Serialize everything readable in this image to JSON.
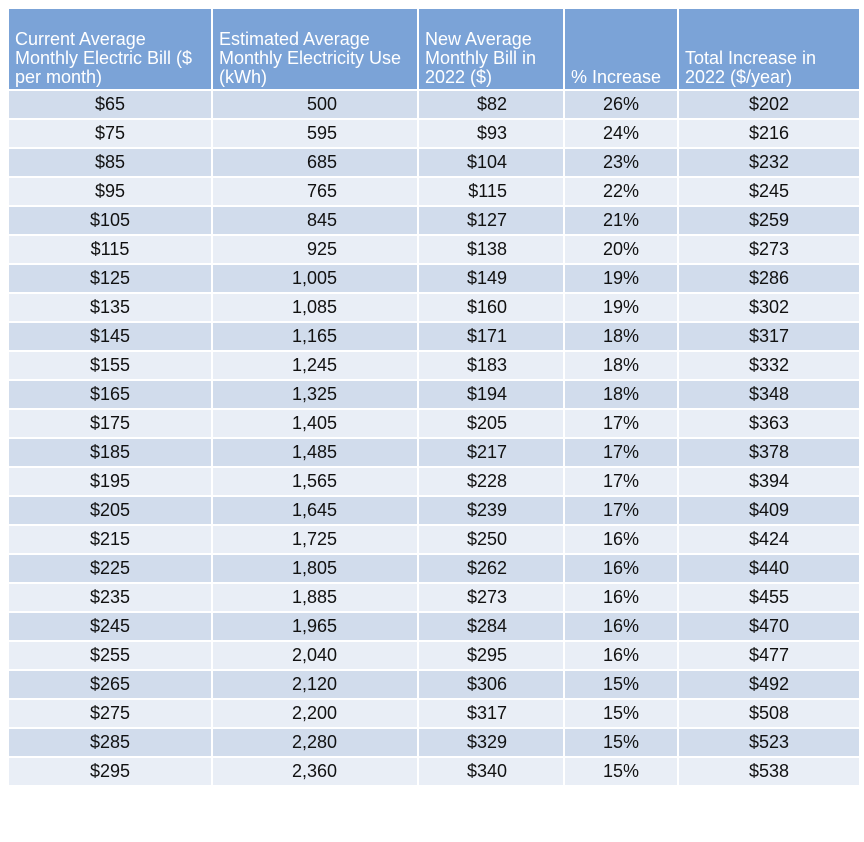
{
  "header": {
    "columns": [
      "Current Average Monthly Electric Bill ($ per month)",
      "Estimated Average Monthly Electricity Use (kWh)",
      "New Average Monthly Bill in 2022 ($)",
      "% Increase",
      "Total Increase in 2022 ($/year)"
    ]
  },
  "table": {
    "rows": [
      [
        "$65",
        "500",
        "$82",
        "26%",
        "$202"
      ],
      [
        "$75",
        "595",
        "$93",
        "24%",
        "$216"
      ],
      [
        "$85",
        "685",
        "$104",
        "23%",
        "$232"
      ],
      [
        "$95",
        "765",
        "$115",
        "22%",
        "$245"
      ],
      [
        "$105",
        "845",
        "$127",
        "21%",
        "$259"
      ],
      [
        "$115",
        "925",
        "$138",
        "20%",
        "$273"
      ],
      [
        "$125",
        "1,005",
        "$149",
        "19%",
        "$286"
      ],
      [
        "$135",
        "1,085",
        "$160",
        "19%",
        "$302"
      ],
      [
        "$145",
        "1,165",
        "$171",
        "18%",
        "$317"
      ],
      [
        "$155",
        "1,245",
        "$183",
        "18%",
        "$332"
      ],
      [
        "$165",
        "1,325",
        "$194",
        "18%",
        "$348"
      ],
      [
        "$175",
        "1,405",
        "$205",
        "17%",
        "$363"
      ],
      [
        "$185",
        "1,485",
        "$217",
        "17%",
        "$378"
      ],
      [
        "$195",
        "1,565",
        "$228",
        "17%",
        "$394"
      ],
      [
        "$205",
        "1,645",
        "$239",
        "17%",
        "$409"
      ],
      [
        "$215",
        "1,725",
        "$250",
        "16%",
        "$424"
      ],
      [
        "$225",
        "1,805",
        "$262",
        "16%",
        "$440"
      ],
      [
        "$235",
        "1,885",
        "$273",
        "16%",
        "$455"
      ],
      [
        "$245",
        "1,965",
        "$284",
        "16%",
        "$470"
      ],
      [
        "$255",
        "2,040",
        "$295",
        "16%",
        "$477"
      ],
      [
        "$265",
        "2,120",
        "$306",
        "15%",
        "$492"
      ],
      [
        "$275",
        "2,200",
        "$317",
        "15%",
        "$508"
      ],
      [
        "$285",
        "2,280",
        "$329",
        "15%",
        "$523"
      ],
      [
        "$295",
        "2,360",
        "$340",
        "15%",
        "$538"
      ]
    ]
  }
}
